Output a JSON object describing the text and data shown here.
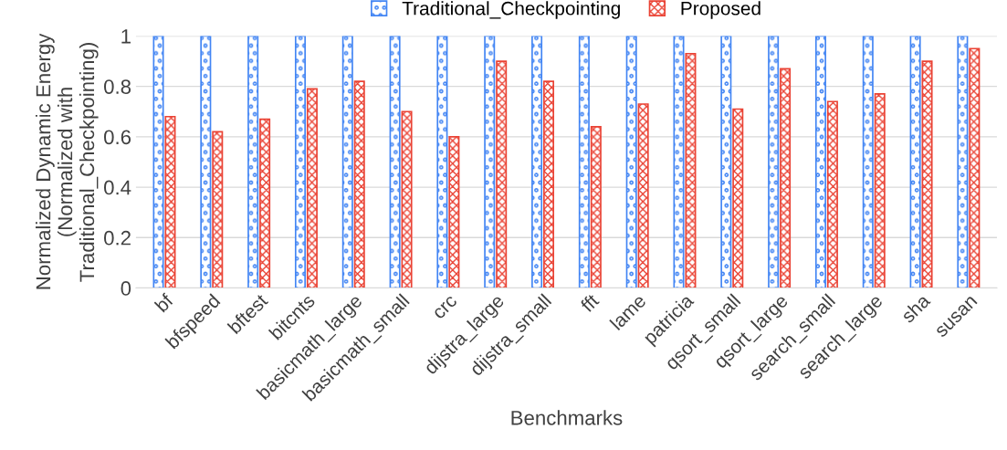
{
  "chart_data": {
    "type": "bar",
    "xlabel": "Benchmarks",
    "ylabel": "Normalized Dynamic Energy\n(Normalized with\nTraditional_Checkpointing)",
    "categories": [
      "bf",
      "bfspeed",
      "bftest",
      "bitcnts",
      "basicmath_large",
      "basicmath_small",
      "crc",
      "dijstra_large",
      "dijstra_small",
      "fft",
      "lame",
      "patricia",
      "qsort_small",
      "qsort_large",
      "search_small",
      "search_large",
      "sha",
      "susan"
    ],
    "series": [
      {
        "name": "Traditional_Checkpointing",
        "color": "#4285f4",
        "values": [
          1,
          1,
          1,
          1,
          1,
          1,
          1,
          1,
          1,
          1,
          1,
          1,
          1,
          1,
          1,
          1,
          1,
          1
        ]
      },
      {
        "name": "Proposed",
        "color": "#ea4335",
        "values": [
          0.68,
          0.62,
          0.67,
          0.79,
          0.82,
          0.7,
          0.6,
          0.9,
          0.82,
          0.64,
          0.73,
          0.93,
          0.71,
          0.87,
          0.74,
          0.77,
          0.9,
          0.95
        ]
      }
    ],
    "ylim": [
      0,
      1
    ],
    "yticks": [
      0,
      {
        "value": 0.2,
        "label": "0.2"
      },
      {
        "value": 0.4,
        "label": "0.4"
      },
      {
        "value": 0.6,
        "label": "0.6"
      },
      {
        "value": 0.8,
        "label": "0.8"
      },
      1
    ],
    "grid": "y",
    "legend": "top"
  }
}
